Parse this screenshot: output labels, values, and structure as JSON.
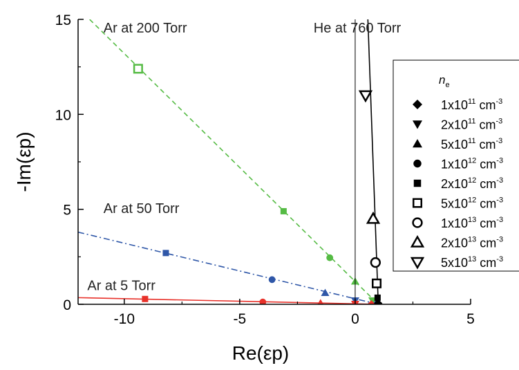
{
  "chart_data": {
    "type": "scatter",
    "xlabel": "Re(εp)",
    "ylabel": "-Im(εp)",
    "xlim": [
      -12,
      5
    ],
    "ylim": [
      0,
      15
    ],
    "xticks": [
      "-10",
      "-5",
      "0",
      "5"
    ],
    "yticks": [
      "0",
      "5",
      "10",
      "15"
    ],
    "xtick_values": [
      -10,
      -5,
      0,
      5
    ],
    "ytick_values": [
      0,
      5,
      10,
      15
    ],
    "annotations": [
      {
        "text": "Ar at 200 Torr",
        "x": -10.9,
        "y": 14.3
      },
      {
        "text": "Ar at 50 Torr",
        "x": -10.9,
        "y": 4.8
      },
      {
        "text": "Ar at 5 Torr",
        "x": -11.6,
        "y": 0.75
      },
      {
        "text": "He at 760 Torr",
        "x": -1.8,
        "y": 14.3
      }
    ],
    "legend": {
      "title": "ne",
      "placement": "right",
      "entries": [
        {
          "marker": "diamond",
          "base": "1x10",
          "exp": "11",
          "unit": "cm",
          "unit_exp": "-3"
        },
        {
          "marker": "triangle-down",
          "base": "2x10",
          "exp": "11",
          "unit": "cm",
          "unit_exp": "-3"
        },
        {
          "marker": "triangle-up",
          "base": "5x10",
          "exp": "11",
          "unit": "cm",
          "unit_exp": "-3"
        },
        {
          "marker": "circle",
          "base": "1x10",
          "exp": "12",
          "unit": "cm",
          "unit_exp": "-3"
        },
        {
          "marker": "square",
          "base": "2x10",
          "exp": "12",
          "unit": "cm",
          "unit_exp": "-3"
        },
        {
          "marker": "square-open",
          "base": "5x10",
          "exp": "12",
          "unit": "cm",
          "unit_exp": "-3"
        },
        {
          "marker": "circle-open",
          "base": "1x10",
          "exp": "13",
          "unit": "cm",
          "unit_exp": "-3"
        },
        {
          "marker": "triangle-up-open",
          "base": "2x10",
          "exp": "13",
          "unit": "cm",
          "unit_exp": "-3"
        },
        {
          "marker": "triangle-down-open",
          "base": "5x10",
          "exp": "13",
          "unit": "cm",
          "unit_exp": "-3"
        }
      ]
    },
    "series": [
      {
        "group": "Ar 200 Torr",
        "color": "#55bb44",
        "line_style": "dashed",
        "line": [
          [
            -11.5,
            15.0
          ],
          [
            1.0,
            0.0
          ]
        ],
        "points": [
          {
            "x": 0.9,
            "y": 0.1,
            "marker": "diamond"
          },
          {
            "x": 0.75,
            "y": 0.2,
            "marker": "triangle-down"
          },
          {
            "x": 0.0,
            "y": 1.2,
            "marker": "triangle-up"
          },
          {
            "x": -1.1,
            "y": 2.45,
            "marker": "circle"
          },
          {
            "x": -3.1,
            "y": 4.9,
            "marker": "square"
          },
          {
            "x": -9.4,
            "y": 12.4,
            "marker": "square-open"
          }
        ]
      },
      {
        "group": "Ar 50 Torr",
        "color": "#2f57a8",
        "line_style": "dash-dot",
        "line": [
          [
            -12.0,
            3.8
          ],
          [
            1.0,
            0.0
          ]
        ],
        "points": [
          {
            "x": 0.9,
            "y": 0.0,
            "marker": "diamond"
          },
          {
            "x": 0.0,
            "y": 0.2,
            "marker": "triangle-down"
          },
          {
            "x": -1.3,
            "y": 0.6,
            "marker": "triangle-up"
          },
          {
            "x": -3.6,
            "y": 1.3,
            "marker": "circle"
          },
          {
            "x": -8.2,
            "y": 2.7,
            "marker": "square"
          }
        ]
      },
      {
        "group": "Ar 5 Torr",
        "color": "#e8312a",
        "line_style": "solid",
        "line": [
          [
            -12.0,
            0.35
          ],
          [
            1.0,
            0.0
          ]
        ],
        "points": [
          {
            "x": 0.7,
            "y": 0.0,
            "marker": "diamond"
          },
          {
            "x": 0.0,
            "y": 0.02,
            "marker": "triangle-down"
          },
          {
            "x": -1.5,
            "y": 0.06,
            "marker": "triangle-up"
          },
          {
            "x": -4.0,
            "y": 0.12,
            "marker": "circle"
          },
          {
            "x": -9.1,
            "y": 0.28,
            "marker": "square"
          }
        ]
      },
      {
        "group": "He 760 Torr",
        "color": "#000000",
        "line_style": "solid",
        "line": [
          [
            0.55,
            15.0
          ],
          [
            1.0,
            0.0
          ]
        ],
        "points": [
          {
            "x": 1.0,
            "y": 0.05,
            "marker": "diamond"
          },
          {
            "x": 0.98,
            "y": 0.15,
            "marker": "triangle-up"
          },
          {
            "x": 0.97,
            "y": 0.35,
            "marker": "square"
          },
          {
            "x": 0.93,
            "y": 1.1,
            "marker": "square-open"
          },
          {
            "x": 0.88,
            "y": 2.2,
            "marker": "circle-open"
          },
          {
            "x": 0.78,
            "y": 4.5,
            "marker": "triangle-up-open"
          },
          {
            "x": 0.45,
            "y": 11.0,
            "marker": "triangle-down-open"
          }
        ]
      }
    ]
  }
}
